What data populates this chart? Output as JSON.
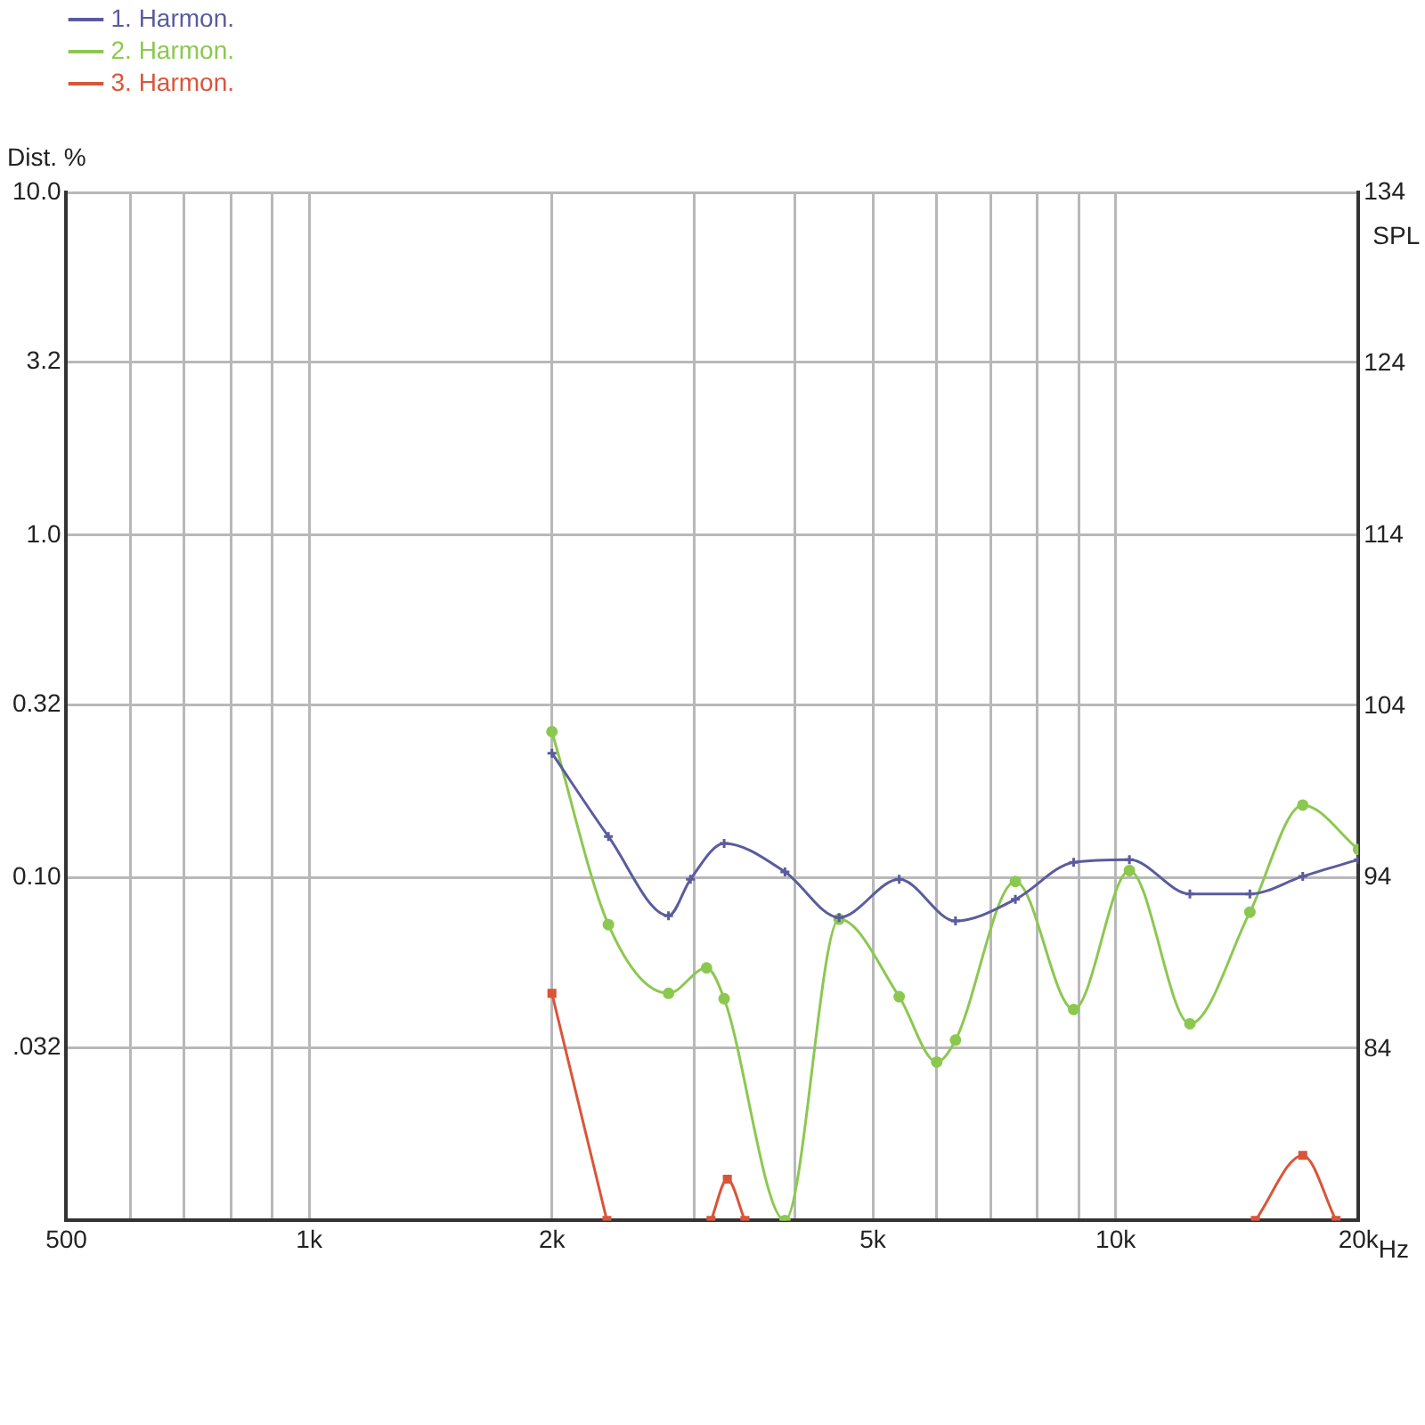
{
  "chart_data": {
    "type": "line",
    "ylabel": "Dist. %",
    "y2label": "SPL",
    "log": "xy",
    "grid": true,
    "legend": "top left",
    "line_style": "solid",
    "xlim": [
      500,
      20000
    ],
    "xticks": [
      500,
      {
        "value": 600,
        "label": null
      },
      {
        "value": 700,
        "label": null
      },
      {
        "value": 800,
        "label": null
      },
      {
        "value": 900,
        "label": null
      },
      {
        "value": 1000,
        "label": "1k"
      },
      {
        "value": 2000,
        "label": "2k"
      },
      {
        "value": 3000,
        "label": null
      },
      {
        "value": 4000,
        "label": null
      },
      {
        "value": 5000,
        "label": "5k"
      },
      {
        "value": 6000,
        "label": null
      },
      {
        "value": 7000,
        "label": null
      },
      {
        "value": 8000,
        "label": null
      },
      {
        "value": 9000,
        "label": null
      },
      {
        "value": 10000,
        "label": "10k"
      },
      {
        "value": 20000,
        "label": "20k"
      }
    ],
    "xlabel": "Hz",
    "ylim": [
      0.01,
      10
    ],
    "yticks": [
      {
        "value": 0.01,
        "label": null
      },
      {
        "value": 0.032,
        "label": ".032"
      },
      {
        "value": 0.1,
        "label": "0.10"
      },
      {
        "value": 0.32,
        "label": "0.32"
      },
      {
        "value": 1,
        "label": "1.0"
      },
      {
        "value": 3.2,
        "label": "3.2"
      },
      {
        "value": 10,
        "label": "10.0"
      }
    ],
    "y2lim": [
      74,
      134
    ],
    "y2ticks": [
      84,
      94,
      104,
      114,
      124,
      134
    ],
    "series": [
      {
        "name": "1. Harmon.",
        "color": "#5b5b9e",
        "marker": "cross",
        "x": [
          2000,
          2350,
          2790,
          2970,
          3270,
          3890,
          4540,
          5390,
          6330,
          7510,
          8870,
          10400,
          12360,
          14670,
          17060,
          20000
        ],
        "values": [
          0.231,
          0.132,
          0.0775,
          0.099,
          0.126,
          0.104,
          0.0766,
          0.099,
          0.0748,
          0.0865,
          0.111,
          0.113,
          0.0897,
          0.0897,
          0.101,
          0.113
        ]
      },
      {
        "name": "2. Harmon.",
        "color": "#8cc850",
        "marker": "circle",
        "x": [
          2000,
          2350,
          2790,
          3110,
          3270,
          3890,
          4540,
          5390,
          6000,
          6330,
          7510,
          8870,
          10400,
          12360,
          14670,
          17060,
          20000
        ],
        "values": [
          0.267,
          0.073,
          0.046,
          0.0546,
          0.0444,
          0.01,
          0.0757,
          0.045,
          0.029,
          0.0336,
          0.0976,
          0.0413,
          0.105,
          0.0375,
          0.0794,
          0.163,
          0.121
        ]
      },
      {
        "name": "3. Harmon.",
        "color": "#d9553a",
        "marker": "square",
        "x": [
          2000,
          2340,
          2800,
          3150,
          3300,
          3470,
          8000,
          14900,
          17060,
          18760
        ],
        "values": [
          0.046,
          0.01,
          null,
          0.01,
          0.0132,
          0.01,
          null,
          0.01,
          0.0155,
          0.01
        ]
      }
    ]
  }
}
